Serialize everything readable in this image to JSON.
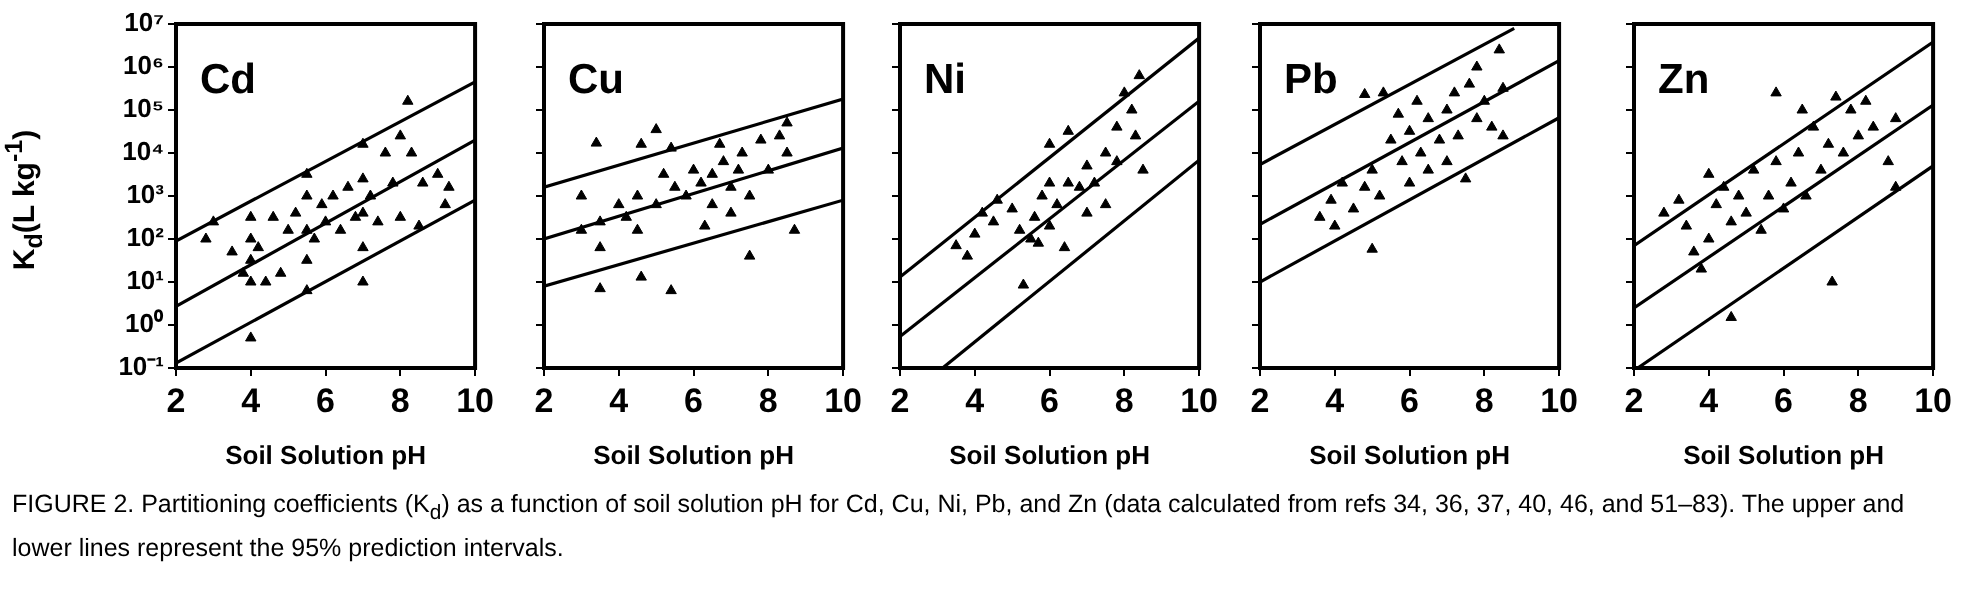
{
  "chart_data": [
    {
      "type": "scatter",
      "annotations": [
        "Cd",
        "FIGURE 2.  Partitioning coefficients (K$_{d}$) as a function of soil solution pH for Cd, Cu, Ni, Pb, and Zn (data calculated from refs 34, 36, 37, 40, 46, and 51–83). The upper and lower lines represent the 95% prediction intervals."
      ],
      "xlabel": "Soil Solution pH",
      "ylabel": "K$_{d}$(L kg$^{-1}$)",
      "log": "y",
      "xlim": [
        2,
        10
      ],
      "xticks": [
        2,
        4,
        6,
        8,
        10
      ],
      "ylim": [
        0.1,
        10000000.0
      ],
      "yticks": [
        {
          "value": 0.1,
          "label": "10⁻¹"
        },
        {
          "value": 1,
          "label": "10⁰"
        },
        {
          "value": 10,
          "label": "10¹"
        },
        {
          "value": 100,
          "label": "10²"
        },
        {
          "value": 1000,
          "label": "10³"
        },
        {
          "value": 10000.0,
          "label": "10⁴"
        },
        {
          "value": 100000.0,
          "label": "10⁵"
        },
        {
          "value": 1000000.0,
          "label": "10⁶"
        },
        {
          "value": 10000000.0,
          "label": "10⁷"
        }
      ],
      "series": [
        {
          "marker": "triangle",
          "color": "#000000",
          "x": [
            2.8,
            3.0,
            3.5,
            3.8,
            4.0,
            4.0,
            4.0,
            4.0,
            4.0,
            4.2,
            4.4,
            4.6,
            4.8,
            5.0,
            5.2,
            5.5,
            5.5,
            5.5,
            5.5,
            5.5,
            5.7,
            5.9,
            6.0,
            6.2,
            6.4,
            6.6,
            6.8,
            7.0,
            7.0,
            7.0,
            7.0,
            7.0,
            7.2,
            7.4,
            7.6,
            7.8,
            8.0,
            8.0,
            8.2,
            8.3,
            8.5,
            8.6,
            9.0,
            9.2,
            9.3
          ],
          "values": [
            100,
            250,
            50,
            16,
            0.5,
            10,
            32,
            100,
            320,
            63,
            10,
            320,
            16,
            160,
            400,
            6.3,
            32,
            160,
            1000,
            3200,
            100,
            630,
            250,
            1000,
            160,
            1600,
            320,
            10,
            63,
            400,
            2500,
            16000,
            1000,
            250,
            10000,
            2000,
            25000,
            320,
            160000,
            10000,
            200,
            2000,
            3200,
            630,
            1600
          ]
        },
        {
          "type": "line",
          "color": "#000000",
          "x": [
            2,
            10
          ],
          "values": [
            90,
            450000
          ]
        },
        {
          "type": "line",
          "color": "#000000",
          "x": [
            2,
            10
          ],
          "values": [
            2.7,
            20000
          ]
        },
        {
          "type": "line",
          "color": "#000000",
          "x": [
            2,
            10
          ],
          "values": [
            0.13,
            800
          ]
        }
      ]
    },
    {
      "type": "scatter",
      "annotations": [
        "Cu"
      ],
      "xlabel": "Soil Solution pH",
      "log": "y",
      "tick_labels": "x",
      "xlim": [
        2,
        10
      ],
      "xticks": [
        2,
        4,
        6,
        8,
        10
      ],
      "ylim": [
        0.1,
        10000000.0
      ],
      "yticks": [
        {
          "value": 0.1,
          "label": null
        },
        {
          "value": 1,
          "label": null
        },
        {
          "value": 10,
          "label": null
        },
        {
          "value": 100,
          "label": null
        },
        {
          "value": 1000,
          "label": null
        },
        {
          "value": 10000.0,
          "label": null
        },
        {
          "value": 100000.0,
          "label": null
        },
        {
          "value": 1000000.0,
          "label": null
        },
        {
          "value": 10000000.0,
          "label": null
        }
      ],
      "series": [
        {
          "marker": "triangle",
          "color": "#000000",
          "x": [
            3.4,
            4.6,
            5.0,
            5.4,
            3.0,
            3.5,
            4.6,
            5.4,
            3.5,
            4.0,
            4.5,
            4.5,
            5.0,
            5.5,
            5.8,
            6.0,
            6.2,
            6.5,
            6.5,
            6.8,
            7.0,
            7.2,
            7.3,
            7.5,
            7.5,
            7.8,
            8.0,
            8.3,
            8.5,
            8.7,
            3.5,
            4.2,
            5.2,
            6.3,
            7.0,
            6.7,
            8.5,
            3.0
          ],
          "values": [
            17000,
            16000,
            35000,
            13000,
            1000,
            7,
            13,
            6.3,
            250,
            630,
            1000,
            160,
            630,
            1600,
            1000,
            4000,
            2000,
            3200,
            630,
            6300,
            1600,
            4000,
            10000,
            40,
            1000,
            20000,
            4000,
            25000,
            10000,
            160,
            63,
            320,
            3200,
            200,
            400,
            16000,
            50000,
            160
          ]
        },
        {
          "type": "line",
          "color": "#000000",
          "x": [
            2,
            10
          ],
          "values": [
            1600,
            180000
          ]
        },
        {
          "type": "line",
          "color": "#000000",
          "x": [
            2,
            10
          ],
          "values": [
            100,
            13000
          ]
        },
        {
          "type": "line",
          "color": "#000000",
          "x": [
            2,
            10
          ],
          "values": [
            8,
            800
          ]
        }
      ]
    },
    {
      "type": "scatter",
      "annotations": [
        "Ni"
      ],
      "xlabel": "Soil Solution pH",
      "log": "y",
      "tick_labels": "x",
      "xlim": [
        2,
        10
      ],
      "xticks": [
        2,
        4,
        6,
        8,
        10
      ],
      "ylim": [
        0.1,
        10000000.0
      ],
      "yticks": [
        {
          "value": 0.1,
          "label": null
        },
        {
          "value": 1,
          "label": null
        },
        {
          "value": 10,
          "label": null
        },
        {
          "value": 100,
          "label": null
        },
        {
          "value": 1000,
          "label": null
        },
        {
          "value": 10000.0,
          "label": null
        },
        {
          "value": 100000.0,
          "label": null
        },
        {
          "value": 1000000.0,
          "label": null
        },
        {
          "value": 10000000.0,
          "label": null
        }
      ],
      "series": [
        {
          "marker": "triangle",
          "color": "#000000",
          "x": [
            3.5,
            3.8,
            4.0,
            4.2,
            4.5,
            5.0,
            5.2,
            5.3,
            5.5,
            5.6,
            5.8,
            6.0,
            6.0,
            6.2,
            6.4,
            6.5,
            6.5,
            6.8,
            7.0,
            7.0,
            7.2,
            7.5,
            7.5,
            7.8,
            7.8,
            8.0,
            8.2,
            8.3,
            8.5,
            8.4,
            6.0,
            4.6,
            5.7
          ],
          "values": [
            70,
            40,
            130,
            400,
            250,
            500,
            160,
            8.5,
            100,
            320,
            1000,
            200,
            2000,
            630,
            63,
            2000,
            32000,
            1600,
            400,
            5000,
            2000,
            630,
            10000,
            40000,
            6300,
            250000,
            100000,
            25000,
            4000,
            630000,
            16000,
            800,
            80
          ]
        },
        {
          "type": "line",
          "color": "#000000",
          "x": [
            2,
            10
          ],
          "values": [
            13,
            4700000
          ]
        },
        {
          "type": "line",
          "color": "#000000",
          "x": [
            2,
            10
          ],
          "values": [
            0.54,
            160000
          ]
        },
        {
          "type": "line",
          "color": "#000000",
          "x": [
            3.14,
            10
          ],
          "values": [
            0.1,
            6800
          ]
        }
      ]
    },
    {
      "type": "scatter",
      "annotations": [
        "Pb"
      ],
      "xlabel": "Soil Solution pH",
      "log": "y",
      "tick_labels": "x",
      "xlim": [
        2,
        10
      ],
      "xticks": [
        2,
        4,
        6,
        8,
        10
      ],
      "ylim": [
        0.1,
        10000000.0
      ],
      "yticks": [
        {
          "value": 0.1,
          "label": null
        },
        {
          "value": 1,
          "label": null
        },
        {
          "value": 10,
          "label": null
        },
        {
          "value": 100,
          "label": null
        },
        {
          "value": 1000,
          "label": null
        },
        {
          "value": 10000.0,
          "label": null
        },
        {
          "value": 100000.0,
          "label": null
        },
        {
          "value": 1000000.0,
          "label": null
        },
        {
          "value": 10000000.0,
          "label": null
        }
      ],
      "series": [
        {
          "marker": "triangle",
          "color": "#000000",
          "x": [
            3.6,
            3.9,
            4.2,
            4.5,
            4.8,
            5.0,
            4.8,
            5.3,
            5.0,
            5.2,
            5.5,
            5.8,
            6.0,
            6.0,
            6.3,
            6.5,
            6.5,
            6.8,
            7.0,
            7.0,
            7.2,
            7.3,
            7.5,
            7.6,
            7.8,
            7.8,
            8.0,
            8.2,
            8.4,
            8.5,
            8.5,
            4.0,
            5.7,
            6.2
          ],
          "values": [
            320,
            800,
            2000,
            500,
            1600,
            4000,
            230000,
            250000,
            58,
            1000,
            20000,
            6300,
            32000,
            2000,
            10000,
            63000,
            4000,
            20000,
            100000,
            6300,
            250000,
            25000,
            2500,
            400000,
            63000,
            1000000,
            160000,
            40000,
            2500000,
            320000,
            25000,
            200,
            80000,
            160000
          ]
        },
        {
          "type": "line",
          "color": "#000000",
          "x": [
            2,
            8.8
          ],
          "values": [
            5400,
            7900000
          ]
        },
        {
          "type": "line",
          "color": "#000000",
          "x": [
            2,
            10
          ],
          "values": [
            220,
            1400000
          ]
        },
        {
          "type": "line",
          "color": "#000000",
          "x": [
            2,
            10
          ],
          "values": [
            10,
            66000
          ]
        }
      ]
    },
    {
      "type": "scatter",
      "annotations": [
        "Zn"
      ],
      "xlabel": "Soil Solution pH",
      "log": "y",
      "tick_labels": "x",
      "xlim": [
        2,
        10
      ],
      "xticks": [
        2,
        4,
        6,
        8,
        10
      ],
      "ylim": [
        0.1,
        10000000.0
      ],
      "yticks": [
        {
          "value": 0.1,
          "label": null
        },
        {
          "value": 1,
          "label": null
        },
        {
          "value": 10,
          "label": null
        },
        {
          "value": 100,
          "label": null
        },
        {
          "value": 1000,
          "label": null
        },
        {
          "value": 10000.0,
          "label": null
        },
        {
          "value": 100000.0,
          "label": null
        },
        {
          "value": 1000000.0,
          "label": null
        },
        {
          "value": 10000000.0,
          "label": null
        }
      ],
      "series": [
        {
          "marker": "triangle",
          "color": "#000000",
          "x": [
            2.8,
            3.2,
            3.4,
            3.6,
            3.8,
            4.0,
            4.2,
            4.4,
            4.6,
            4.6,
            4.8,
            5.0,
            5.2,
            5.4,
            5.6,
            5.8,
            5.8,
            6.0,
            6.2,
            6.4,
            6.6,
            6.8,
            7.0,
            7.2,
            7.3,
            7.4,
            7.6,
            7.8,
            8.0,
            8.2,
            8.4,
            8.8,
            9.0,
            9.0,
            4.0,
            6.5
          ],
          "values": [
            400,
            800,
            200,
            50,
            20,
            100,
            630,
            1600,
            1.5,
            250,
            1000,
            400,
            4000,
            160,
            1000,
            250000,
            6300,
            500,
            2000,
            10000,
            1000,
            40000,
            4000,
            16000,
            10,
            200000,
            10000,
            100000,
            25000,
            160000,
            40000,
            6300,
            63000,
            1600,
            3200,
            100000
          ]
        },
        {
          "type": "line",
          "color": "#000000",
          "x": [
            2,
            10
          ],
          "values": [
            70,
            3800000
          ]
        },
        {
          "type": "line",
          "color": "#000000",
          "x": [
            2,
            10
          ],
          "values": [
            2.5,
            130000
          ]
        },
        {
          "type": "line",
          "color": "#000000",
          "x": [
            2.1,
            10
          ],
          "values": [
            0.1,
            5000
          ]
        }
      ]
    }
  ]
}
